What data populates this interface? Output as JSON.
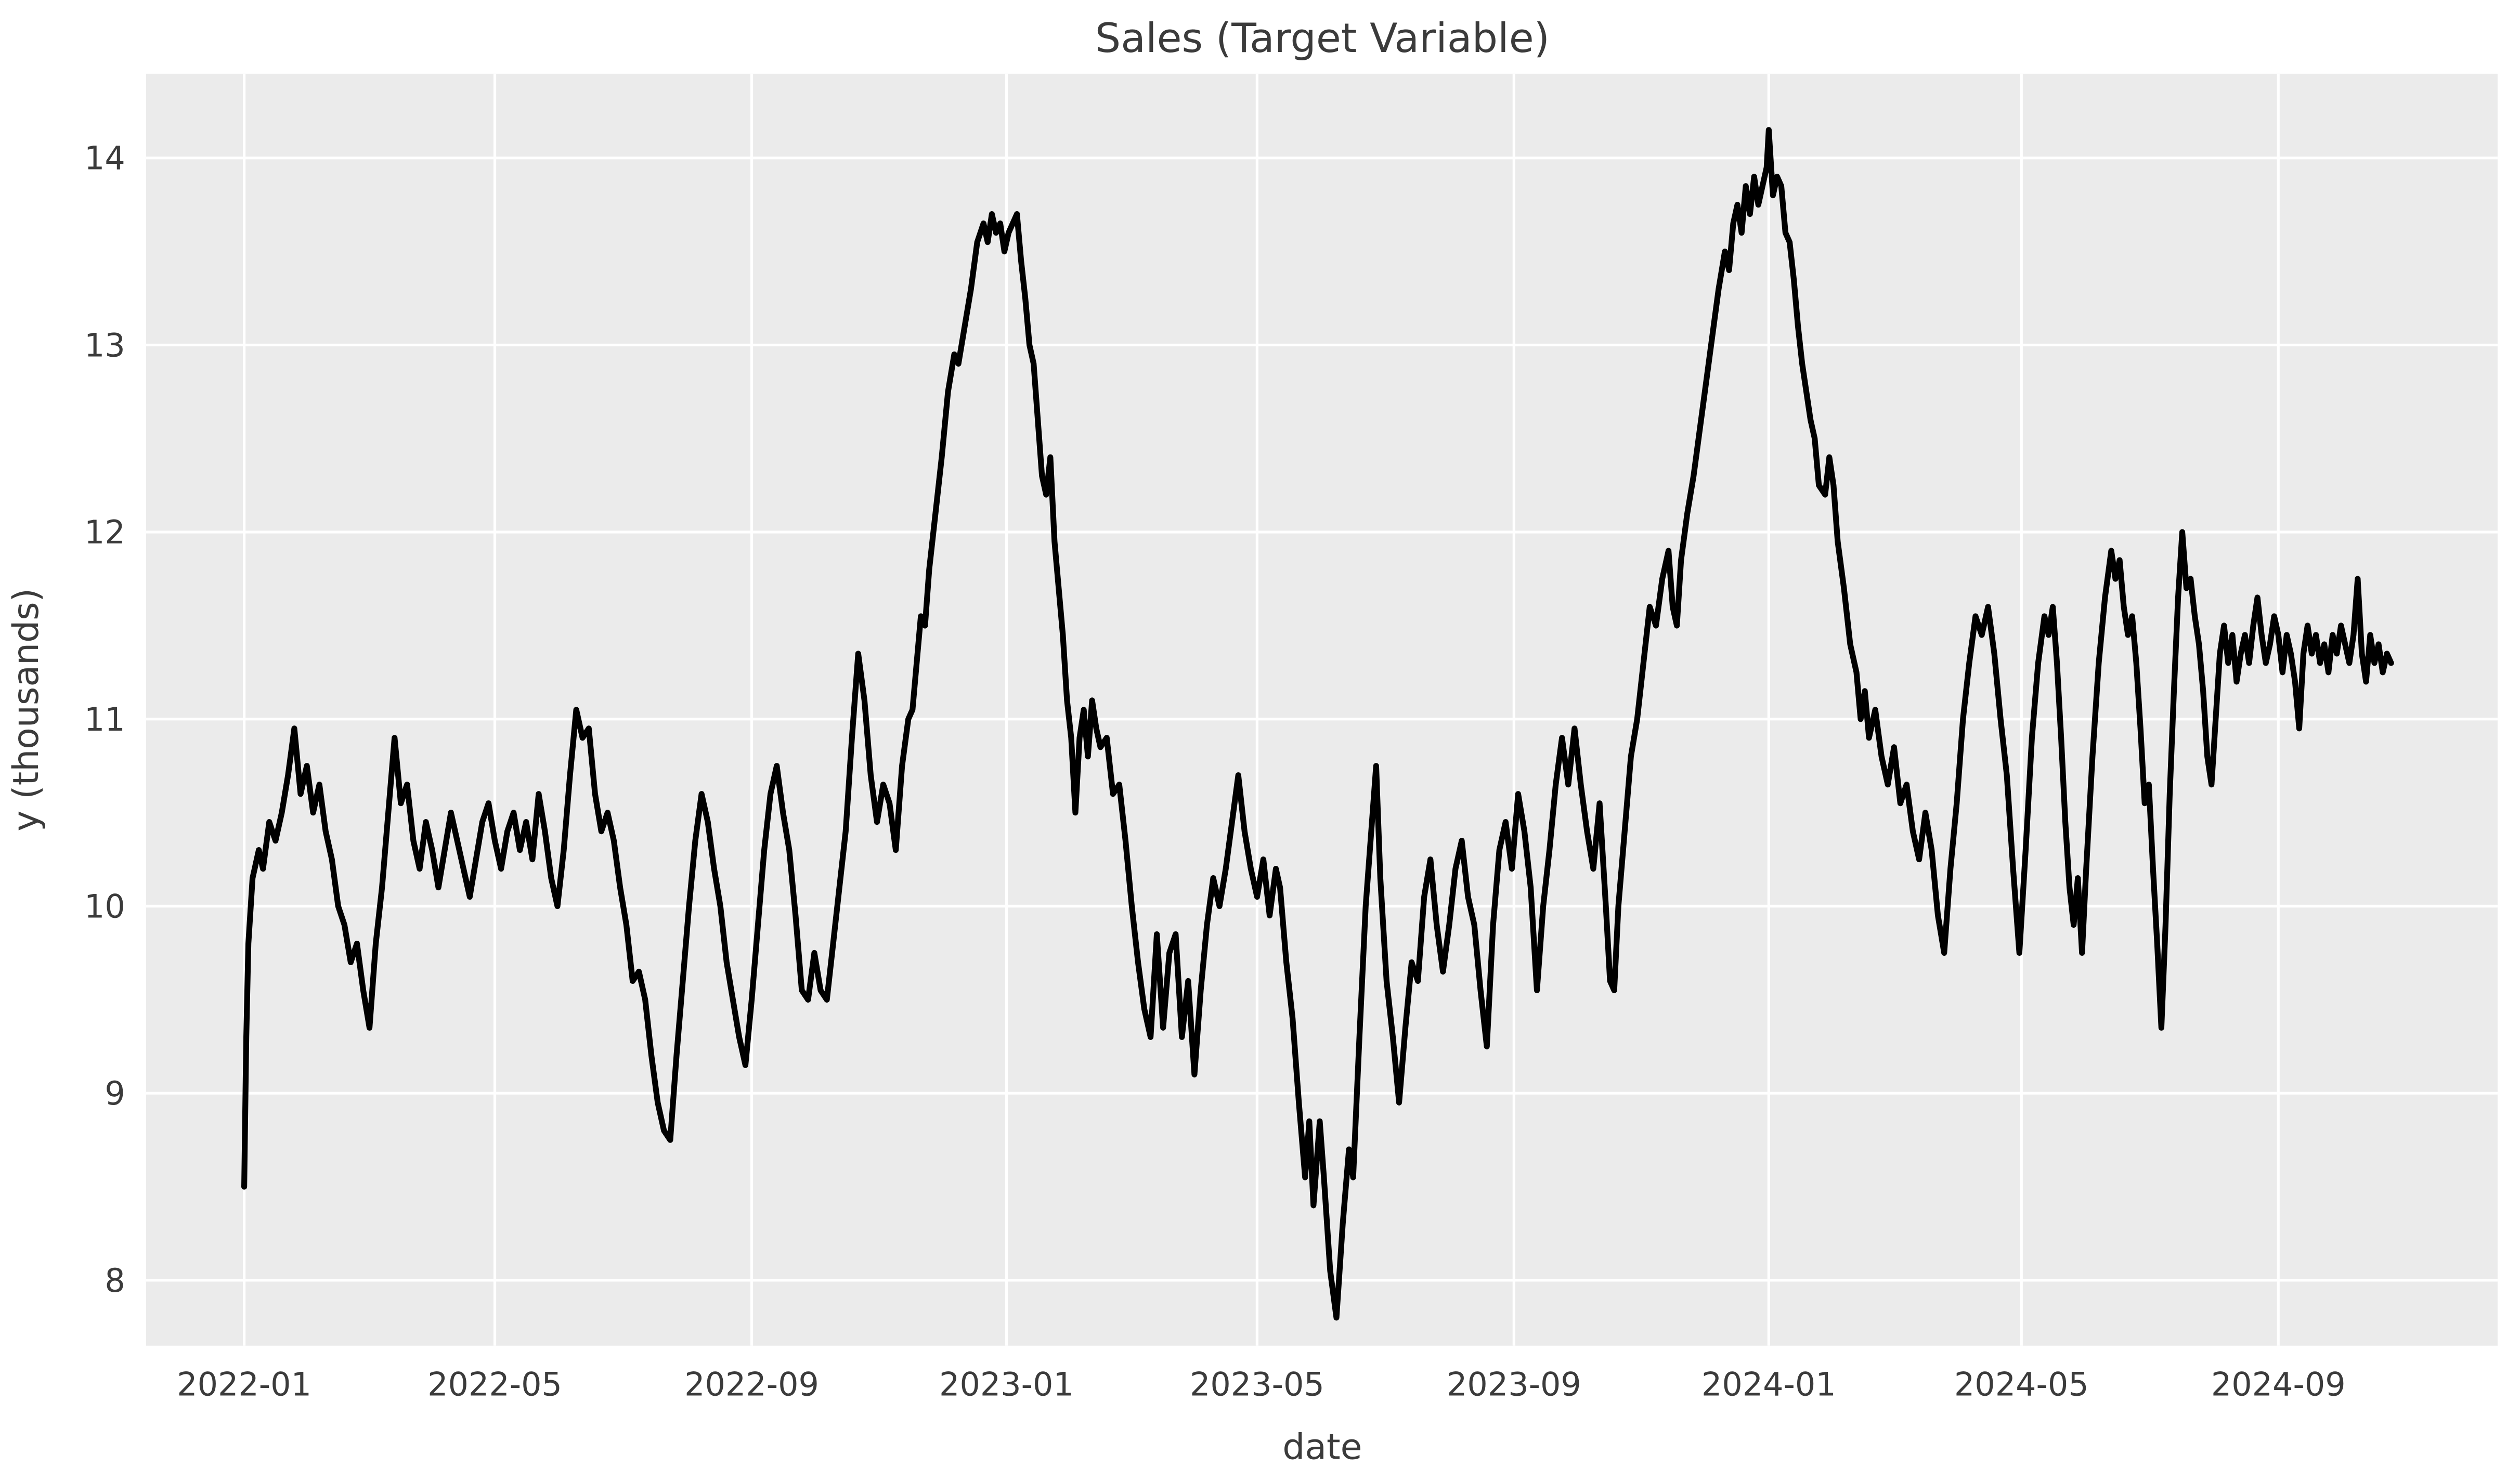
{
  "title": "Sales (Target Variable)",
  "chart_data": {
    "type": "line",
    "title": "Sales (Target Variable)",
    "xlabel": "date",
    "ylabel": "y (thousands)",
    "series_name": "sales",
    "line_color": "#000000",
    "plot_bg": "#ebebeb",
    "figure_bg": "#ffffff",
    "grid_color": "#ffffff",
    "text_color": "#3b3b3b",
    "grid": true,
    "legend": "none",
    "x_unit": "days since 2022-01-01",
    "x_domain": [
      -47,
      1079
    ],
    "y_domain": [
      7.65,
      14.45
    ],
    "y_ticks": [
      8,
      9,
      10,
      11,
      12,
      13,
      14
    ],
    "x_ticks": [
      {
        "day": 0,
        "label": "2022-01"
      },
      {
        "day": 120,
        "label": "2022-05"
      },
      {
        "day": 243,
        "label": "2022-09"
      },
      {
        "day": 365,
        "label": "2023-01"
      },
      {
        "day": 485,
        "label": "2023-05"
      },
      {
        "day": 608,
        "label": "2023-09"
      },
      {
        "day": 730,
        "label": "2024-01"
      },
      {
        "day": 851,
        "label": "2024-05"
      },
      {
        "day": 974,
        "label": "2024-09"
      }
    ],
    "points": [
      [
        0,
        8.5
      ],
      [
        1,
        9.3
      ],
      [
        2,
        9.8
      ],
      [
        4,
        10.15
      ],
      [
        7,
        10.3
      ],
      [
        9,
        10.2
      ],
      [
        12,
        10.45
      ],
      [
        15,
        10.35
      ],
      [
        18,
        10.5
      ],
      [
        21,
        10.7
      ],
      [
        24,
        10.95
      ],
      [
        27,
        10.6
      ],
      [
        30,
        10.75
      ],
      [
        33,
        10.5
      ],
      [
        36,
        10.65
      ],
      [
        39,
        10.4
      ],
      [
        42,
        10.25
      ],
      [
        45,
        10.0
      ],
      [
        48,
        9.9
      ],
      [
        51,
        9.7
      ],
      [
        54,
        9.8
      ],
      [
        57,
        9.55
      ],
      [
        60,
        9.35
      ],
      [
        63,
        9.8
      ],
      [
        66,
        10.1
      ],
      [
        69,
        10.5
      ],
      [
        72,
        10.9
      ],
      [
        75,
        10.55
      ],
      [
        78,
        10.65
      ],
      [
        81,
        10.35
      ],
      [
        84,
        10.2
      ],
      [
        87,
        10.45
      ],
      [
        90,
        10.3
      ],
      [
        93,
        10.1
      ],
      [
        96,
        10.3
      ],
      [
        99,
        10.5
      ],
      [
        102,
        10.35
      ],
      [
        105,
        10.2
      ],
      [
        108,
        10.05
      ],
      [
        111,
        10.25
      ],
      [
        114,
        10.45
      ],
      [
        117,
        10.55
      ],
      [
        120,
        10.35
      ],
      [
        123,
        10.2
      ],
      [
        126,
        10.4
      ],
      [
        129,
        10.5
      ],
      [
        132,
        10.3
      ],
      [
        135,
        10.45
      ],
      [
        138,
        10.25
      ],
      [
        141,
        10.6
      ],
      [
        144,
        10.4
      ],
      [
        147,
        10.15
      ],
      [
        150,
        10.0
      ],
      [
        153,
        10.3
      ],
      [
        156,
        10.7
      ],
      [
        159,
        11.05
      ],
      [
        162,
        10.9
      ],
      [
        165,
        10.95
      ],
      [
        168,
        10.6
      ],
      [
        171,
        10.4
      ],
      [
        174,
        10.5
      ],
      [
        177,
        10.35
      ],
      [
        180,
        10.1
      ],
      [
        183,
        9.9
      ],
      [
        186,
        9.6
      ],
      [
        189,
        9.65
      ],
      [
        192,
        9.5
      ],
      [
        195,
        9.2
      ],
      [
        198,
        8.95
      ],
      [
        201,
        8.8
      ],
      [
        204,
        8.75
      ],
      [
        207,
        9.2
      ],
      [
        210,
        9.6
      ],
      [
        213,
        10.0
      ],
      [
        216,
        10.35
      ],
      [
        219,
        10.6
      ],
      [
        222,
        10.45
      ],
      [
        225,
        10.2
      ],
      [
        228,
        10.0
      ],
      [
        231,
        9.7
      ],
      [
        234,
        9.5
      ],
      [
        237,
        9.3
      ],
      [
        240,
        9.15
      ],
      [
        243,
        9.5
      ],
      [
        246,
        9.9
      ],
      [
        249,
        10.3
      ],
      [
        252,
        10.6
      ],
      [
        255,
        10.75
      ],
      [
        258,
        10.5
      ],
      [
        261,
        10.3
      ],
      [
        264,
        9.95
      ],
      [
        267,
        9.55
      ],
      [
        270,
        9.5
      ],
      [
        273,
        9.75
      ],
      [
        276,
        9.55
      ],
      [
        279,
        9.5
      ],
      [
        282,
        9.8
      ],
      [
        285,
        10.1
      ],
      [
        288,
        10.4
      ],
      [
        291,
        10.9
      ],
      [
        294,
        11.35
      ],
      [
        297,
        11.1
      ],
      [
        300,
        10.7
      ],
      [
        303,
        10.45
      ],
      [
        306,
        10.65
      ],
      [
        309,
        10.55
      ],
      [
        312,
        10.3
      ],
      [
        315,
        10.75
      ],
      [
        318,
        11.0
      ],
      [
        320,
        11.05
      ],
      [
        322,
        11.3
      ],
      [
        324,
        11.55
      ],
      [
        326,
        11.5
      ],
      [
        328,
        11.8
      ],
      [
        331,
        12.1
      ],
      [
        334,
        12.4
      ],
      [
        337,
        12.75
      ],
      [
        340,
        12.95
      ],
      [
        342,
        12.9
      ],
      [
        345,
        13.1
      ],
      [
        348,
        13.3
      ],
      [
        351,
        13.55
      ],
      [
        354,
        13.65
      ],
      [
        356,
        13.55
      ],
      [
        358,
        13.7
      ],
      [
        360,
        13.6
      ],
      [
        362,
        13.65
      ],
      [
        364,
        13.5
      ],
      [
        366,
        13.6
      ],
      [
        368,
        13.65
      ],
      [
        370,
        13.7
      ],
      [
        372,
        13.45
      ],
      [
        374,
        13.25
      ],
      [
        376,
        13.0
      ],
      [
        378,
        12.9
      ],
      [
        380,
        12.6
      ],
      [
        382,
        12.3
      ],
      [
        384,
        12.2
      ],
      [
        386,
        12.4
      ],
      [
        388,
        11.95
      ],
      [
        390,
        11.7
      ],
      [
        392,
        11.45
      ],
      [
        394,
        11.1
      ],
      [
        396,
        10.9
      ],
      [
        398,
        10.5
      ],
      [
        400,
        10.9
      ],
      [
        402,
        11.05
      ],
      [
        404,
        10.8
      ],
      [
        406,
        11.1
      ],
      [
        408,
        10.95
      ],
      [
        410,
        10.85
      ],
      [
        413,
        10.9
      ],
      [
        416,
        10.6
      ],
      [
        419,
        10.65
      ],
      [
        422,
        10.35
      ],
      [
        425,
        10.0
      ],
      [
        428,
        9.7
      ],
      [
        431,
        9.45
      ],
      [
        434,
        9.3
      ],
      [
        437,
        9.85
      ],
      [
        440,
        9.35
      ],
      [
        443,
        9.75
      ],
      [
        446,
        9.85
      ],
      [
        449,
        9.3
      ],
      [
        452,
        9.6
      ],
      [
        455,
        9.1
      ],
      [
        458,
        9.55
      ],
      [
        461,
        9.9
      ],
      [
        464,
        10.15
      ],
      [
        467,
        10.0
      ],
      [
        470,
        10.2
      ],
      [
        473,
        10.45
      ],
      [
        476,
        10.7
      ],
      [
        479,
        10.4
      ],
      [
        482,
        10.2
      ],
      [
        485,
        10.05
      ],
      [
        488,
        10.25
      ],
      [
        491,
        9.95
      ],
      [
        494,
        10.2
      ],
      [
        496,
        10.1
      ],
      [
        499,
        9.7
      ],
      [
        502,
        9.4
      ],
      [
        505,
        8.95
      ],
      [
        508,
        8.55
      ],
      [
        510,
        8.85
      ],
      [
        512,
        8.4
      ],
      [
        515,
        8.85
      ],
      [
        517,
        8.55
      ],
      [
        520,
        8.05
      ],
      [
        523,
        7.8
      ],
      [
        526,
        8.3
      ],
      [
        529,
        8.7
      ],
      [
        531,
        8.55
      ],
      [
        534,
        9.3
      ],
      [
        537,
        10.0
      ],
      [
        540,
        10.45
      ],
      [
        542,
        10.75
      ],
      [
        544,
        10.15
      ],
      [
        547,
        9.6
      ],
      [
        550,
        9.3
      ],
      [
        553,
        8.95
      ],
      [
        556,
        9.35
      ],
      [
        559,
        9.7
      ],
      [
        562,
        9.6
      ],
      [
        565,
        10.05
      ],
      [
        568,
        10.25
      ],
      [
        571,
        9.9
      ],
      [
        574,
        9.65
      ],
      [
        577,
        9.9
      ],
      [
        580,
        10.2
      ],
      [
        583,
        10.35
      ],
      [
        586,
        10.05
      ],
      [
        589,
        9.9
      ],
      [
        592,
        9.55
      ],
      [
        595,
        9.25
      ],
      [
        598,
        9.9
      ],
      [
        601,
        10.3
      ],
      [
        604,
        10.45
      ],
      [
        607,
        10.2
      ],
      [
        610,
        10.6
      ],
      [
        613,
        10.4
      ],
      [
        616,
        10.1
      ],
      [
        619,
        9.55
      ],
      [
        622,
        10.0
      ],
      [
        625,
        10.3
      ],
      [
        628,
        10.65
      ],
      [
        631,
        10.9
      ],
      [
        634,
        10.65
      ],
      [
        637,
        10.95
      ],
      [
        640,
        10.65
      ],
      [
        643,
        10.4
      ],
      [
        646,
        10.2
      ],
      [
        649,
        10.55
      ],
      [
        652,
        10.0
      ],
      [
        654,
        9.6
      ],
      [
        656,
        9.55
      ],
      [
        658,
        10.0
      ],
      [
        661,
        10.4
      ],
      [
        664,
        10.8
      ],
      [
        667,
        11.0
      ],
      [
        670,
        11.3
      ],
      [
        673,
        11.6
      ],
      [
        676,
        11.5
      ],
      [
        679,
        11.75
      ],
      [
        682,
        11.9
      ],
      [
        684,
        11.6
      ],
      [
        686,
        11.5
      ],
      [
        688,
        11.85
      ],
      [
        691,
        12.1
      ],
      [
        694,
        12.3
      ],
      [
        697,
        12.55
      ],
      [
        700,
        12.8
      ],
      [
        703,
        13.05
      ],
      [
        706,
        13.3
      ],
      [
        709,
        13.5
      ],
      [
        711,
        13.4
      ],
      [
        713,
        13.65
      ],
      [
        715,
        13.75
      ],
      [
        717,
        13.6
      ],
      [
        719,
        13.85
      ],
      [
        721,
        13.7
      ],
      [
        723,
        13.9
      ],
      [
        725,
        13.75
      ],
      [
        727,
        13.85
      ],
      [
        729,
        13.95
      ],
      [
        730,
        14.15
      ],
      [
        732,
        13.8
      ],
      [
        734,
        13.9
      ],
      [
        736,
        13.85
      ],
      [
        738,
        13.6
      ],
      [
        740,
        13.55
      ],
      [
        742,
        13.35
      ],
      [
        744,
        13.1
      ],
      [
        746,
        12.9
      ],
      [
        748,
        12.75
      ],
      [
        750,
        12.6
      ],
      [
        752,
        12.5
      ],
      [
        754,
        12.25
      ],
      [
        757,
        12.2
      ],
      [
        759,
        12.4
      ],
      [
        761,
        12.25
      ],
      [
        763,
        11.95
      ],
      [
        766,
        11.7
      ],
      [
        769,
        11.4
      ],
      [
        772,
        11.25
      ],
      [
        774,
        11.0
      ],
      [
        776,
        11.15
      ],
      [
        778,
        10.9
      ],
      [
        781,
        11.05
      ],
      [
        784,
        10.8
      ],
      [
        787,
        10.65
      ],
      [
        790,
        10.85
      ],
      [
        793,
        10.55
      ],
      [
        796,
        10.65
      ],
      [
        799,
        10.4
      ],
      [
        802,
        10.25
      ],
      [
        805,
        10.5
      ],
      [
        808,
        10.3
      ],
      [
        811,
        9.95
      ],
      [
        814,
        9.75
      ],
      [
        817,
        10.2
      ],
      [
        820,
        10.55
      ],
      [
        823,
        11.0
      ],
      [
        826,
        11.3
      ],
      [
        829,
        11.55
      ],
      [
        832,
        11.45
      ],
      [
        835,
        11.6
      ],
      [
        838,
        11.35
      ],
      [
        841,
        11.0
      ],
      [
        844,
        10.7
      ],
      [
        847,
        10.2
      ],
      [
        850,
        9.75
      ],
      [
        853,
        10.3
      ],
      [
        856,
        10.9
      ],
      [
        859,
        11.3
      ],
      [
        862,
        11.55
      ],
      [
        864,
        11.45
      ],
      [
        866,
        11.6
      ],
      [
        868,
        11.3
      ],
      [
        870,
        10.9
      ],
      [
        872,
        10.45
      ],
      [
        874,
        10.1
      ],
      [
        876,
        9.9
      ],
      [
        878,
        10.15
      ],
      [
        880,
        9.75
      ],
      [
        882,
        10.2
      ],
      [
        885,
        10.8
      ],
      [
        888,
        11.3
      ],
      [
        891,
        11.65
      ],
      [
        894,
        11.9
      ],
      [
        896,
        11.75
      ],
      [
        898,
        11.85
      ],
      [
        900,
        11.6
      ],
      [
        902,
        11.45
      ],
      [
        904,
        11.55
      ],
      [
        906,
        11.3
      ],
      [
        908,
        10.95
      ],
      [
        910,
        10.55
      ],
      [
        912,
        10.65
      ],
      [
        914,
        10.2
      ],
      [
        916,
        9.8
      ],
      [
        918,
        9.35
      ],
      [
        920,
        9.9
      ],
      [
        922,
        10.6
      ],
      [
        924,
        11.15
      ],
      [
        926,
        11.65
      ],
      [
        928,
        12.0
      ],
      [
        930,
        11.7
      ],
      [
        932,
        11.75
      ],
      [
        934,
        11.55
      ],
      [
        936,
        11.4
      ],
      [
        938,
        11.15
      ],
      [
        940,
        10.8
      ],
      [
        942,
        10.65
      ],
      [
        944,
        11.0
      ],
      [
        946,
        11.35
      ],
      [
        948,
        11.5
      ],
      [
        950,
        11.3
      ],
      [
        952,
        11.45
      ],
      [
        954,
        11.2
      ],
      [
        956,
        11.35
      ],
      [
        958,
        11.45
      ],
      [
        960,
        11.3
      ],
      [
        962,
        11.5
      ],
      [
        964,
        11.65
      ],
      [
        966,
        11.45
      ],
      [
        968,
        11.3
      ],
      [
        970,
        11.4
      ],
      [
        972,
        11.55
      ],
      [
        974,
        11.45
      ],
      [
        976,
        11.25
      ],
      [
        978,
        11.45
      ],
      [
        980,
        11.35
      ],
      [
        982,
        11.2
      ],
      [
        984,
        10.95
      ],
      [
        986,
        11.35
      ],
      [
        988,
        11.5
      ],
      [
        990,
        11.35
      ],
      [
        992,
        11.45
      ],
      [
        994,
        11.3
      ],
      [
        996,
        11.4
      ],
      [
        998,
        11.25
      ],
      [
        1000,
        11.45
      ],
      [
        1002,
        11.35
      ],
      [
        1004,
        11.5
      ],
      [
        1006,
        11.4
      ],
      [
        1008,
        11.3
      ],
      [
        1010,
        11.45
      ],
      [
        1012,
        11.75
      ],
      [
        1014,
        11.35
      ],
      [
        1016,
        11.2
      ],
      [
        1018,
        11.45
      ],
      [
        1020,
        11.3
      ],
      [
        1022,
        11.4
      ],
      [
        1024,
        11.25
      ],
      [
        1026,
        11.35
      ],
      [
        1028,
        11.3
      ]
    ]
  }
}
